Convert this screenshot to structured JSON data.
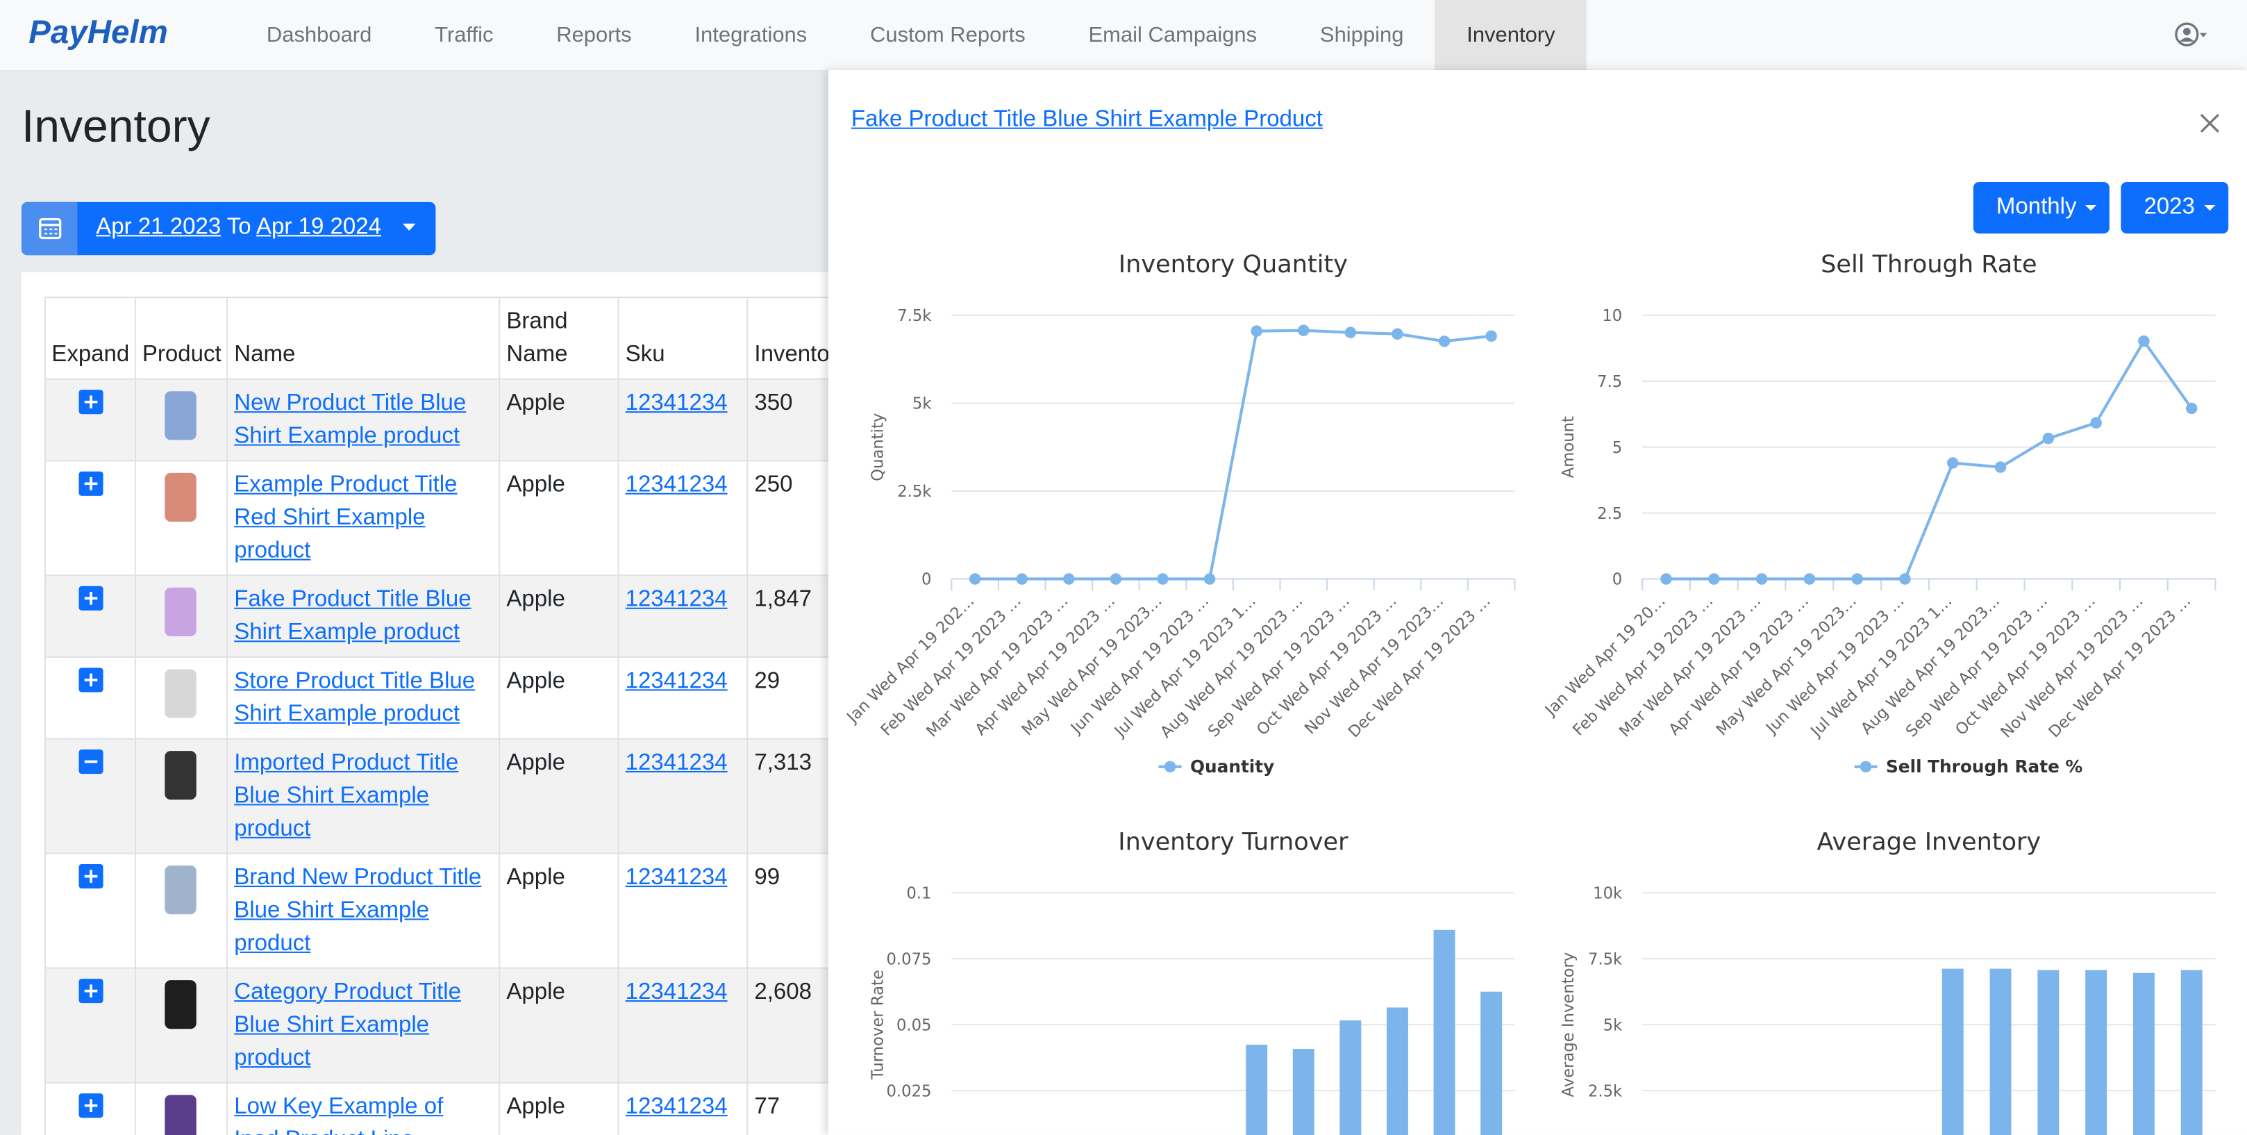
{
  "nav": {
    "brand": "PayHelm",
    "items": [
      "Dashboard",
      "Traffic",
      "Reports",
      "Integrations",
      "Custom Reports",
      "Email Campaigns",
      "Shipping",
      "Inventory"
    ],
    "active_item": 7
  },
  "page": {
    "title": "Inventory",
    "date_from": "Apr 21 2023",
    "date_sep": "To",
    "date_to": "Apr 19 2024"
  },
  "table": {
    "headers": [
      "Expand",
      "Product",
      "Name",
      "Brand Name",
      "Sku",
      "Inventory"
    ],
    "rows": [
      {
        "expanded": false,
        "name": "New Product Title Blue Shirt Example product",
        "brand": "Apple",
        "sku": "12341234",
        "inventory": "350"
      },
      {
        "expanded": false,
        "name": "Example Product Title Red Shirt Example product",
        "brand": "Apple",
        "sku": "12341234",
        "inventory": "250"
      },
      {
        "expanded": false,
        "name": "Fake Product Title Blue Shirt Example product",
        "brand": "Apple",
        "sku": "12341234",
        "inventory": "1,847"
      },
      {
        "expanded": false,
        "name": "Store Product Title Blue Shirt Example product",
        "brand": "Apple",
        "sku": "12341234",
        "inventory": "29"
      },
      {
        "expanded": true,
        "name": "Imported Product Title Blue Shirt Example product",
        "brand": "Apple",
        "sku": "12341234",
        "inventory": "7,313"
      },
      {
        "expanded": false,
        "name": "Brand New Product Title Blue Shirt Example product",
        "brand": "Apple",
        "sku": "12341234",
        "inventory": "99"
      },
      {
        "expanded": false,
        "name": "Category Product Title Blue Shirt Example product",
        "brand": "Apple",
        "sku": "12341234",
        "inventory": "2,608"
      },
      {
        "expanded": false,
        "name": "Low Key Example of Ipad Product Line",
        "brand": "Apple",
        "sku": "12341234",
        "inventory": "77"
      }
    ]
  },
  "panel": {
    "title": "Fake Product Title Blue Shirt Example Product",
    "period": "Monthly",
    "year": "2023",
    "charts": [
      {
        "type": "line",
        "title": "Inventory Quantity",
        "y_label": "Quantity",
        "categories": [
          "Jan Wed Apr 19 202…",
          "Feb Wed Apr 19 2023 …",
          "Mar Wed Apr 19 2023 …",
          "Apr Wed Apr 19 2023 …",
          "May Wed Apr 19 2023…",
          "Jun Wed Apr 19 2023 …",
          "Jul Wed Apr 19 2023 1…",
          "Aug Wed Apr 19 2023 …",
          "Sep Wed Apr 19 2023 …",
          "Oct Wed Apr 19 2023 …",
          "Nov Wed Apr 19 2023…",
          "Dec Wed Apr 19 2023 …"
        ],
        "series": [
          {
            "name": "Quantity",
            "color": "#7cb5ec",
            "values": [
              0,
              0,
              0,
              0,
              0,
              0,
              7050,
              7070,
              7010,
              6970,
              6760,
              6910
            ]
          }
        ],
        "ylim": [
          0,
          7500
        ],
        "yticks": [
          0,
          {
            "value": 2500,
            "label": "2.5k"
          },
          {
            "value": 5000,
            "label": "5k"
          },
          {
            "value": 7500,
            "label": "7.5k"
          }
        ],
        "grid": true,
        "legend": "bottom"
      },
      {
        "type": "line",
        "title": "Sell Through Rate",
        "y_label": "Amount",
        "categories": [
          "Jan Wed Apr 19 20…",
          "Feb Wed Apr 19 2023 …",
          "Mar Wed Apr 19 2023 …",
          "Apr Wed Apr 19 2023 …",
          "May Wed Apr 19 2023…",
          "Jun Wed Apr 19 2023 …",
          "Jul Wed Apr 19 2023 1…",
          "Aug Wed Apr 19 2023…",
          "Sep Wed Apr 19 2023 …",
          "Oct Wed Apr 19 2023 …",
          "Nov Wed Apr 19 2023 …",
          "Dec Wed Apr 19 2023 …"
        ],
        "series": [
          {
            "name": "Sell Through Rate %",
            "color": "#7cb5ec",
            "values": [
              0,
              0,
              0,
              0,
              0,
              0,
              4.4,
              4.24,
              5.33,
              5.92,
              9.02,
              6.47
            ]
          }
        ],
        "ylim": [
          0,
          10
        ],
        "yticks": [
          0,
          2.5,
          5,
          7.5,
          10
        ],
        "grid": true,
        "legend": "bottom"
      },
      {
        "type": "bar",
        "title": "Inventory Turnover",
        "y_label": "Turnover Rate",
        "color": "#7cb5ec",
        "values": [
          0,
          0,
          0,
          0,
          0,
          0,
          0.0424,
          0.0408,
          0.0516,
          0.0565,
          0.0859,
          0.0625
        ],
        "ylim": [
          0,
          0.1
        ],
        "yticks": [
          0.025,
          0.05,
          0.075,
          0.1
        ],
        "grid": true
      },
      {
        "type": "bar",
        "title": "Average Inventory",
        "y_label": "Average Inventory",
        "color": "#7cb5ec",
        "values": [
          0,
          0,
          0,
          0,
          0,
          0,
          7120,
          7120,
          7070,
          7070,
          6960,
          7070
        ],
        "ylim": [
          0,
          10000
        ],
        "yticks": [
          {
            "value": 2500,
            "label": "2.5k"
          },
          {
            "value": 5000,
            "label": "5k"
          },
          {
            "value": 7500,
            "label": "7.5k"
          },
          {
            "value": 10000,
            "label": "10k"
          }
        ],
        "grid": true
      }
    ]
  }
}
